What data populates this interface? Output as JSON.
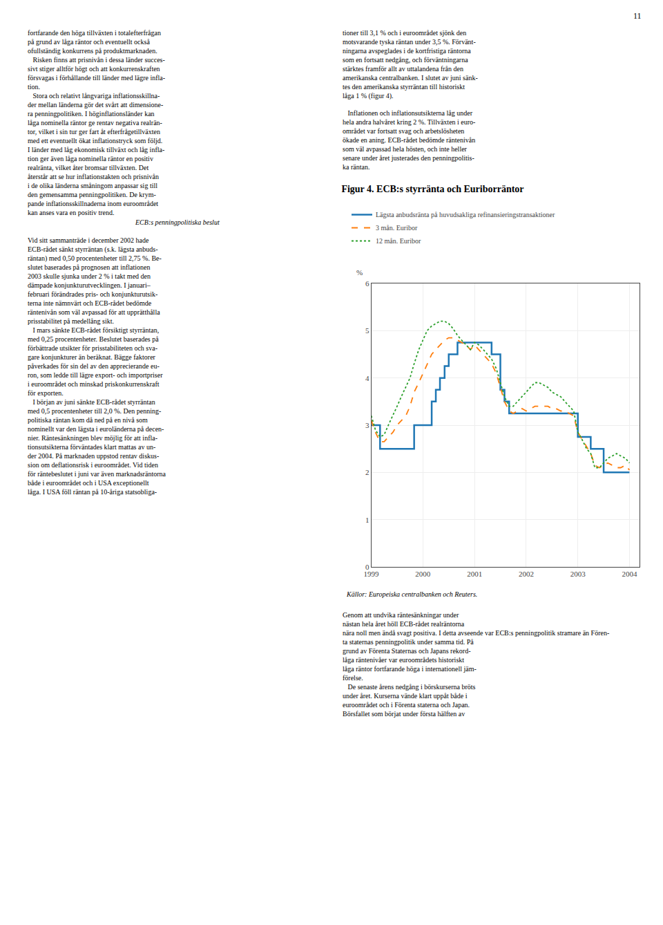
{
  "chart_data": {
    "type": "line",
    "title": "Figur 4. ECB:s styrränta och Euriborräntor",
    "ylabel": "%",
    "annotations": [
      "11",
      "fortfarande den höga tillväxten i totalefterfrågan\npå grund av låga räntor och eventuellt också\nofullständig konkurrens på produktmarknaden.\n   Risken finns att prisnivån i dessa länder succes-\nsivt stiger alltför högt och att konkurrenskraften\nförsvagas i förhållande till länder med lägre infla-\ntion.\n   Stora och relativt långvariga inflationsskillna-\nder mellan länderna gör det svårt att dimensione-\nra penningpolitiken. I höginflationsländer kan\nlåga nominella räntor ge rentav negativa realrän-\ntor, vilket i sin tur ger fart åt efterfrågetillväxten\nmed ett eventuellt ökat inflationstryck som följd.\nI länder med låg ekonomisk tillväxt och låg infla-\ntion ger även låga nominella räntor en positiv\nrealränta, vilket åter bromsar tillväxten. Det\nåterstår att se hur inflationstakten och prisnivån\ni de olika länderna småningom anpassar sig till\nden gemensamma penningpolitiken. De krym-\npande inflationsskillnaderna inom euroområdet\nkan anses vara en positiv trend.",
      "ECB:s penningpolitiska beslut",
      "Vid sitt sammanträde i december 2002 hade\nECB-rådet sänkt styrräntan (s.k. lägsta anbuds-\nräntan) med 0,50 procentenheter till 2,75 %. Be-\nslutet baserades på prognosen att inflationen\n2003 skulle sjunka under 2 % i takt med den\ndämpade konjunkturutvecklingen. I januari–\nfebruari förändrades pris- och konjunkturutsik-\nterna inte nämnvärt och ECB-rådet bedömde\nräntenivån som väl avpassad för att upprätthålla\nprisstabilitet på medellång sikt.\n   I mars sänkte ECB-rådet försiktigt styrräntan,\nmed 0,25 procentenheter. Beslutet baserades på\nförbättrade utsikter för prisstabiliteten och sva-\ngare konjunkturer än beräknat. Bägge faktorer\npåverkades för sin del av den apprecierande eu-\nron, som ledde till lägre export- och importpriser\ni euroområdet och minskad priskonkurrenskraft\nför exporten.\n   I början av juni sänkte ECB-rådet styrräntan\nmed 0,5 procentenheter till 2,0 %. Den penning-\npolitiska räntan kom då ned på en nivå som\nnominellt var den lägsta i euroländerna på decen-\nnier. Räntesänkningen blev möjlig för att infla-\ntionsutsikterna förväntades klart mattas av un-\nder 2004. På marknaden uppstod rentav diskus-\nsion om deflationsrisk i euroområdet. Vid tiden\nför räntebeslutet i juni var även marknadsräntorna\nbåde i euroområdet och i USA exceptionellt\nlåga. I USA föll räntan på 10-åriga statsobliga-",
      "tioner till 3,1 % och i euroområdet sjönk den\nmotsvarande tyska räntan under 3,5 %. Förvänt-\nningarna avspeglades i de kortfristiga räntorna\nsom en fortsatt nedgång, och förväntningarna\nstärktes framför allt av uttalandena från den\namerikanska centralbanken. I slutet av juni sänk-\ntes den amerikanska styrräntan till historiskt\nlåga 1 % (figur 4).",
      "   Inflationen och inflationsutsikterna låg under\nhela andra halvåret kring 2 %. Tillväxten i euro-\nområdet var fortsatt svag och arbetslösheten\nökade en aning. ECB-rådet bedömde räntenivån\nsom väl avpassad hela hösten, och inte heller\nsenare under året justerades den penningpolitis-\nka räntan.",
      "Källor: Europeiska centralbanken och Reuters.",
      "Genom att undvika räntesänkningar under\nnästan hela året höll ECB-rådet realräntorna\nnära noll men ändå svagt positiva. I detta avseende var ECB:s penningpolitik stramare än Fören-\nta staternas penningpolitik under samma tid. På\ngrund av Förenta Staternas och Japans rekord-\nlåga räntenivåer var euroområdets historiskt\nlåga räntor fortfarande höga i internationell jäm-\nförelse.\n   De senaste årens nedgång i börskurserna bröts\nunder året. Kurserna vände klart uppåt både i\neuroområdet och i Förenta staterna och Japan.\nBörsfallet som börjat under första hälften av"
    ],
    "xlim": [
      1999,
      2004.2
    ],
    "xticks": [
      1999,
      2000,
      2001,
      2002,
      2003,
      2004
    ],
    "ylim": [
      0,
      6
    ],
    "yticks": [
      0,
      1,
      2,
      3,
      4,
      5,
      6
    ],
    "grid": true,
    "legend": "top left",
    "series": [
      {
        "name": "Lägsta anbudsränta på huvudsakliga refinansieringstransaktioner",
        "type": "step",
        "line_style": "solid",
        "x": [
          1999.0,
          1999.04,
          1999.17,
          1999.25,
          1999.33,
          1999.42,
          1999.5,
          1999.58,
          1999.67,
          1999.75,
          1999.83,
          1999.92,
          2000.0,
          2000.17,
          2000.25,
          2000.33,
          2000.42,
          2000.5,
          2000.58,
          2000.67,
          2000.75,
          2000.83,
          2000.92,
          2001.0,
          2001.08,
          2001.33,
          2001.5,
          2001.58,
          2001.67,
          2001.75,
          2001.83,
          2001.92,
          2002.0,
          2002.08,
          2002.17,
          2002.25,
          2002.33,
          2002.42,
          2002.5,
          2002.58,
          2002.67,
          2002.75,
          2002.83,
          2002.92,
          2003.0,
          2003.08,
          2003.25,
          2003.42,
          2003.5,
          2003.58,
          2003.67,
          2003.75,
          2003.83,
          2003.92,
          2004.0
        ],
        "values": [
          3.0,
          3.0,
          2.5,
          2.5,
          2.5,
          2.5,
          2.5,
          2.5,
          2.5,
          2.5,
          3.0,
          3.0,
          3.0,
          3.5,
          3.75,
          4.0,
          4.25,
          4.5,
          4.5,
          4.75,
          4.75,
          4.75,
          4.75,
          4.75,
          4.75,
          4.5,
          3.75,
          3.5,
          3.25,
          3.25,
          3.25,
          3.25,
          3.25,
          3.25,
          3.25,
          3.25,
          3.25,
          3.25,
          3.25,
          3.25,
          3.25,
          3.25,
          3.25,
          3.25,
          2.75,
          2.75,
          2.5,
          2.5,
          2.0,
          2.0,
          2.0,
          2.0,
          2.0,
          2.0,
          2.0
        ]
      },
      {
        "name": "3 mån. Euribor",
        "type": "line",
        "line_style": "dash",
        "x": [
          1999.0,
          1999.08,
          1999.17,
          1999.25,
          1999.33,
          1999.42,
          1999.5,
          1999.58,
          1999.67,
          1999.75,
          1999.83,
          1999.92,
          2000.0,
          2000.08,
          2000.17,
          2000.25,
          2000.33,
          2000.42,
          2000.5,
          2000.58,
          2000.67,
          2000.75,
          2000.83,
          2000.92,
          2001.0,
          2001.08,
          2001.17,
          2001.25,
          2001.33,
          2001.42,
          2001.5,
          2001.58,
          2001.67,
          2001.75,
          2001.83,
          2001.92,
          2002.0,
          2002.08,
          2002.17,
          2002.25,
          2002.33,
          2002.42,
          2002.5,
          2002.58,
          2002.67,
          2002.75,
          2002.83,
          2002.92,
          2003.0,
          2003.08,
          2003.17,
          2003.25,
          2003.33,
          2003.42,
          2003.5,
          2003.58,
          2003.67,
          2003.75,
          2003.83,
          2003.92,
          2004.0
        ],
        "values": [
          3.1,
          2.85,
          2.65,
          2.65,
          2.75,
          2.85,
          3.0,
          3.1,
          3.2,
          3.4,
          3.7,
          3.9,
          4.1,
          4.3,
          4.5,
          4.6,
          4.7,
          4.8,
          4.85,
          4.85,
          4.8,
          4.75,
          4.7,
          4.6,
          4.7,
          4.6,
          4.5,
          4.4,
          4.3,
          4.1,
          3.8,
          3.5,
          3.3,
          3.25,
          3.3,
          3.35,
          3.3,
          3.35,
          3.4,
          3.4,
          3.4,
          3.4,
          3.35,
          3.35,
          3.3,
          3.3,
          3.25,
          3.2,
          2.85,
          2.7,
          2.55,
          2.4,
          2.15,
          2.1,
          2.15,
          2.2,
          2.15,
          2.1,
          2.1,
          2.15,
          2.05
        ]
      },
      {
        "name": "12 mån. Euribor",
        "type": "line",
        "line_style": "dot",
        "x": [
          1999.0,
          1999.08,
          1999.17,
          1999.25,
          1999.33,
          1999.42,
          1999.5,
          1999.58,
          1999.67,
          1999.75,
          1999.83,
          1999.92,
          2000.0,
          2000.08,
          2000.17,
          2000.25,
          2000.33,
          2000.42,
          2000.5,
          2000.58,
          2000.67,
          2000.75,
          2000.83,
          2000.92,
          2001.0,
          2001.08,
          2001.17,
          2001.25,
          2001.33,
          2001.42,
          2001.5,
          2001.58,
          2001.67,
          2001.75,
          2001.83,
          2001.92,
          2002.0,
          2002.08,
          2002.17,
          2002.25,
          2002.33,
          2002.42,
          2002.5,
          2002.58,
          2002.67,
          2002.75,
          2002.83,
          2002.92,
          2003.0,
          2003.08,
          2003.17,
          2003.25,
          2003.33,
          2003.42,
          2003.5,
          2003.58,
          2003.67,
          2003.75,
          2003.83,
          2003.92,
          2004.0
        ],
        "values": [
          3.2,
          2.9,
          2.75,
          2.8,
          3.0,
          3.2,
          3.4,
          3.6,
          3.8,
          4.0,
          4.3,
          4.6,
          4.8,
          5.0,
          5.1,
          5.15,
          5.2,
          5.2,
          5.15,
          5.05,
          4.9,
          4.8,
          4.7,
          4.6,
          4.75,
          4.7,
          4.6,
          4.5,
          4.4,
          4.2,
          3.9,
          3.6,
          3.4,
          3.4,
          3.5,
          3.6,
          3.7,
          3.8,
          3.9,
          3.9,
          3.85,
          3.8,
          3.7,
          3.65,
          3.6,
          3.5,
          3.4,
          3.3,
          2.85,
          2.7,
          2.5,
          2.4,
          2.1,
          2.1,
          2.2,
          2.3,
          2.35,
          2.4,
          2.35,
          2.3,
          2.2
        ]
      }
    ]
  }
}
